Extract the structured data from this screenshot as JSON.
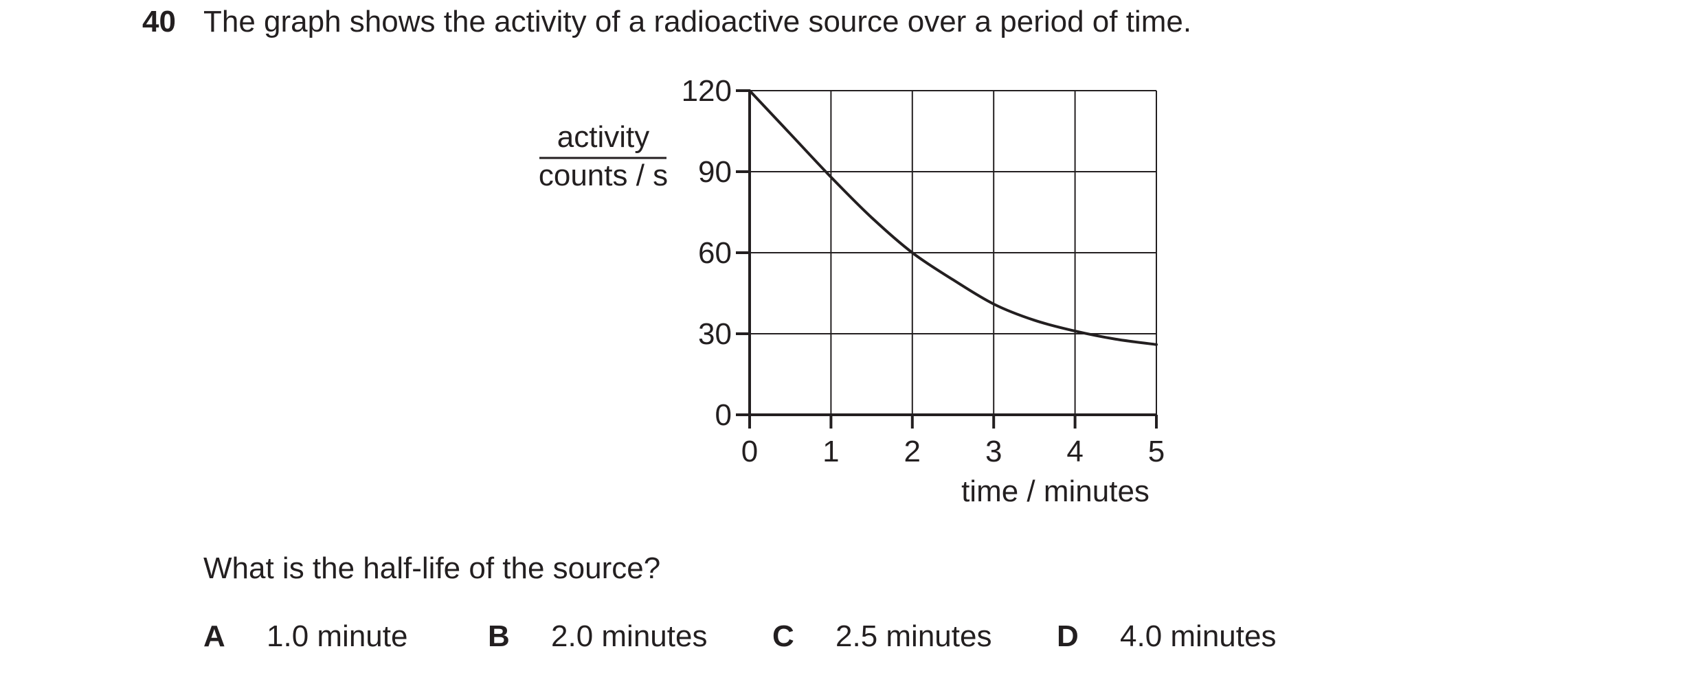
{
  "question": {
    "number": "40",
    "stem": "The graph shows the activity of a radioactive source over a period of time.",
    "prompt": "What is the half-life of the source?",
    "options": [
      {
        "letter": "A",
        "text": "1.0 minute"
      },
      {
        "letter": "B",
        "text": "2.0 minutes"
      },
      {
        "letter": "C",
        "text": "2.5 minutes"
      },
      {
        "letter": "D",
        "text": "4.0 minutes"
      }
    ]
  },
  "chart_data": {
    "type": "line",
    "title": "",
    "xlabel": "time / minutes",
    "ylabel_numerator": "activity",
    "ylabel_denominator": "counts / s",
    "xlim": [
      0,
      5
    ],
    "ylim": [
      0,
      120
    ],
    "x_ticks": [
      "0",
      "1",
      "2",
      "3",
      "4",
      "5"
    ],
    "y_ticks": [
      "0",
      "30",
      "60",
      "90",
      "120"
    ],
    "grid": true,
    "legend": "none",
    "line_color": "#231f20",
    "series": [
      {
        "x": [
          0,
          0.5,
          1,
          1.5,
          2,
          2.5,
          3,
          3.5,
          4,
          4.5,
          5
        ],
        "values": [
          120,
          104,
          88,
          73,
          60,
          50,
          41,
          35,
          31,
          28,
          26
        ]
      }
    ]
  }
}
